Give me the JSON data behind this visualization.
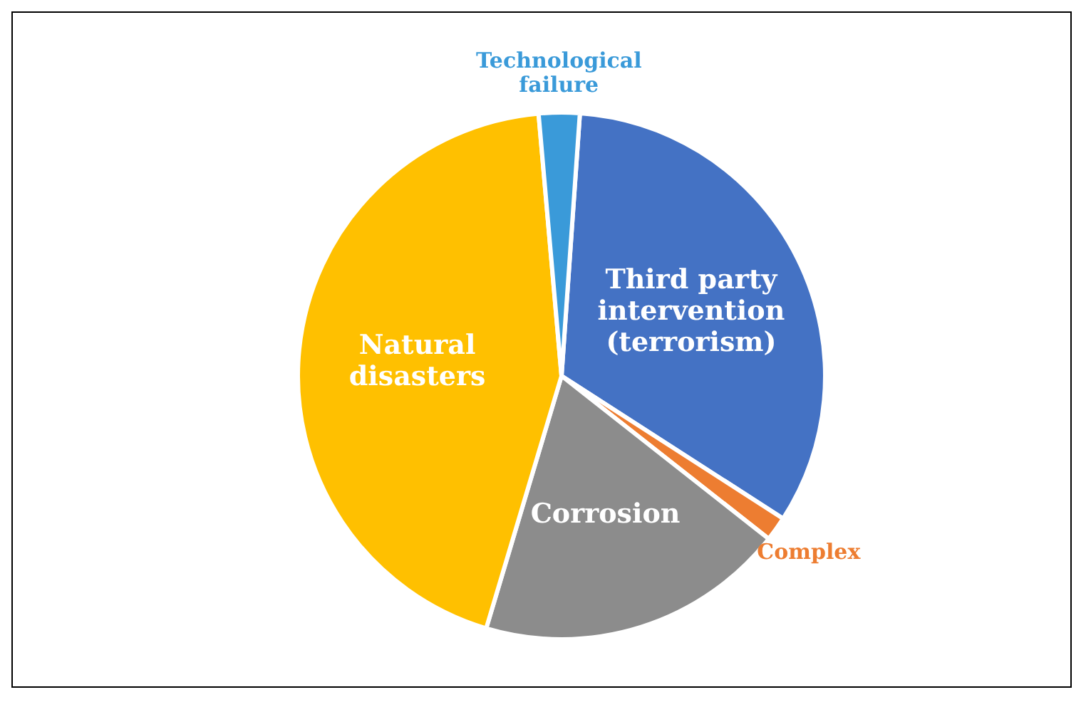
{
  "chart_data": {
    "type": "pie",
    "categories": [
      "Third party intervention (terrorism)",
      "Complex",
      "Corrosion",
      "Natural disasters",
      "Technological failure"
    ],
    "values": [
      33,
      1.5,
      19,
      44,
      2.5
    ],
    "colors": [
      "#4472c4",
      "#ed7d31",
      "#8c8c8c",
      "#ffc000",
      "#3a9ad9"
    ]
  }
}
